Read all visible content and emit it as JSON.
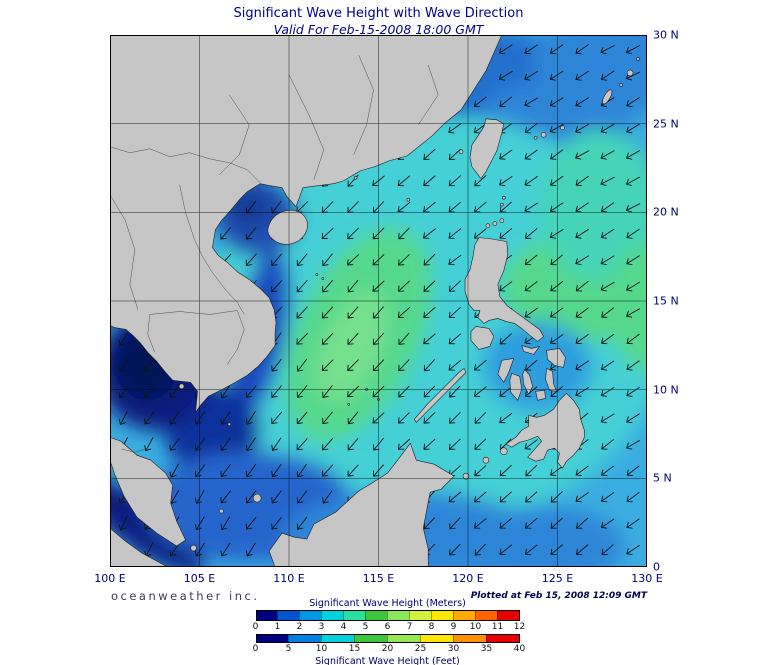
{
  "header": {
    "title": "Significant Wave Height with Wave Direction",
    "subtitle": "Valid For Feb-15-2008 18:00 GMT"
  },
  "footer": {
    "credit": "oceanweather inc.",
    "plotted": "Plotted at Feb 15, 2008 12:09 GMT"
  },
  "axes": {
    "lon_ticks": [
      "100 E",
      "105 E",
      "110 E",
      "115 E",
      "120 E",
      "125 E",
      "130 E"
    ],
    "lat_ticks": [
      "30 N",
      "25 N",
      "20 N",
      "15 N",
      "10 N",
      "5 N",
      "0"
    ]
  },
  "legend": {
    "meters_label": "Significant Wave Height (Meters)",
    "feet_label": "Significant Wave Height (Feet)",
    "meters_ticks": [
      "0",
      "1",
      "2",
      "3",
      "4",
      "5",
      "6",
      "7",
      "8",
      "9",
      "10",
      "11",
      "12"
    ],
    "feet_ticks": [
      "0",
      "5",
      "10",
      "15",
      "20",
      "25",
      "30",
      "35",
      "40"
    ],
    "meters_colors": [
      "#000082",
      "#0054d2",
      "#0096e6",
      "#00d2dc",
      "#2ae0a0",
      "#3cc83c",
      "#8ce65a",
      "#d2f03c",
      "#ffe600",
      "#ffaa00",
      "#ff6400",
      "#e60000"
    ],
    "feet_colors": [
      "#000082",
      "#0080e0",
      "#00d2dc",
      "#3cc83c",
      "#96e650",
      "#ffe600",
      "#ff9000",
      "#e60000"
    ]
  },
  "map": {
    "land_color": "#c6c6c6",
    "grid_color": "#000000",
    "arrow": {
      "symbol": "wave-direction-arrow",
      "base_angle_deg": 225,
      "color": "#0b1616"
    },
    "sea_palette": {
      "base_open_water": "#3aade0",
      "central_cyan": "#44cfd6",
      "high_waves_green": "#55d88e",
      "coastal_blue": "#2e86d8",
      "low_waves_dark_navy": "#051257"
    }
  },
  "chart_data": {
    "type": "heatmap",
    "title": "Significant Wave Height with Wave Direction",
    "valid_time": "Feb-15-2008 18:00 GMT",
    "plotted_time": "Feb 15, 2008 12:09 GMT",
    "region": {
      "lon_deg_e": [
        100,
        130
      ],
      "lat_deg_n": [
        0,
        30
      ]
    },
    "grid_interval_deg": 5,
    "colorbar_meters": {
      "min": 0,
      "max": 12,
      "step": 1
    },
    "colorbar_feet": {
      "min": 0,
      "max": 40,
      "step": 5
    },
    "notable_features": [
      "Wave direction arrows point generally southwest across the basin (northeast monsoon swell)",
      "Highest waves (~3-4 m, green) in central South China Sea and east of Luzon in the Philippine Sea",
      "Lowest waves (<1 m, dark navy) in Gulf of Thailand and Strait of Malacca",
      "Moderate waves (1-2 m, blue) along China coast, Gulf of Tonkin and Sunda shelf"
    ]
  }
}
